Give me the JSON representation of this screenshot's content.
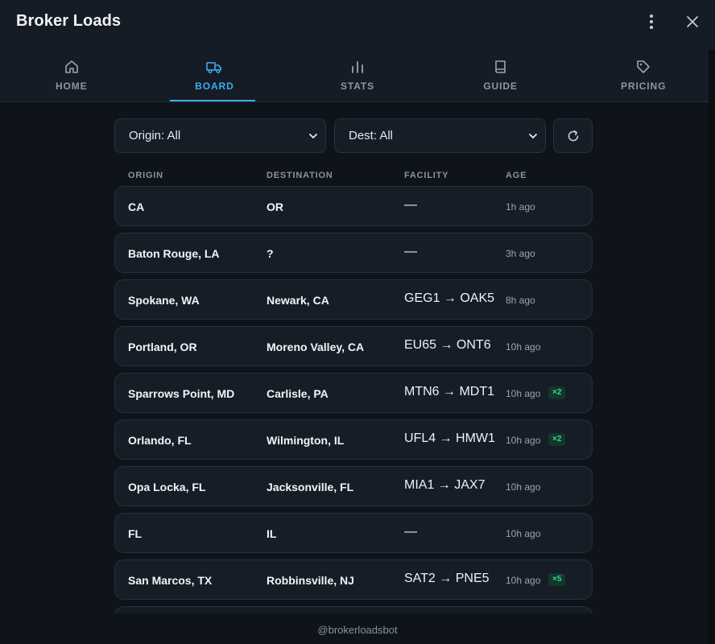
{
  "app": {
    "title": "Broker Loads"
  },
  "header": {
    "more_icon": "more-vertical-icon",
    "close_icon": "close-icon"
  },
  "tabs": [
    {
      "label": "HOME",
      "icon": "home-icon",
      "active": false
    },
    {
      "label": "BOARD",
      "icon": "truck-icon",
      "active": true
    },
    {
      "label": "STATS",
      "icon": "bar-chart-icon",
      "active": false
    },
    {
      "label": "GUIDE",
      "icon": "book-icon",
      "active": false
    },
    {
      "label": "PRICING",
      "icon": "tag-icon",
      "active": false
    }
  ],
  "filters": {
    "origin": "Origin: All",
    "dest": "Dest: All",
    "refresh_icon": "refresh-icon"
  },
  "columns": {
    "origin": "ORIGIN",
    "destination": "DESTINATION",
    "facility": "FACILITY",
    "age": "AGE"
  },
  "rows": [
    {
      "origin": "CA",
      "destination": "OR",
      "facility": "—",
      "age": "1h ago",
      "badge": ""
    },
    {
      "origin": "Baton Rouge, LA",
      "destination": "?",
      "facility": "—",
      "age": "3h ago",
      "badge": ""
    },
    {
      "origin": "Spokane, WA",
      "destination": "Newark, CA",
      "facility": "GEG1 → OAK5",
      "age": "8h ago",
      "badge": ""
    },
    {
      "origin": "Portland, OR",
      "destination": "Moreno Valley, CA",
      "facility": "EU65 → ONT6",
      "age": "10h ago",
      "badge": ""
    },
    {
      "origin": "Sparrows Point, MD",
      "destination": "Carlisle, PA",
      "facility": "MTN6 → MDT1",
      "age": "10h ago",
      "badge": "×2"
    },
    {
      "origin": "Orlando, FL",
      "destination": "Wilmington, IL",
      "facility": "UFL4 → HMW1",
      "age": "10h ago",
      "badge": "×2"
    },
    {
      "origin": "Opa Locka, FL",
      "destination": "Jacksonville, FL",
      "facility": "MIA1 → JAX7",
      "age": "10h ago",
      "badge": ""
    },
    {
      "origin": "FL",
      "destination": "IL",
      "facility": "—",
      "age": "10h ago",
      "badge": ""
    },
    {
      "origin": "San Marcos, TX",
      "destination": "Robbinsville, NJ",
      "facility": "SAT2 → PNE5",
      "age": "10h ago",
      "badge": "×5"
    },
    {
      "origin": "",
      "destination": "",
      "facility": "",
      "age": "",
      "badge": ""
    }
  ],
  "footer": {
    "handle": "@brokerloadsbot"
  },
  "colors": {
    "accent": "#38aef0",
    "badge_text": "#35d690",
    "badge_bg": "#12372c",
    "background": "#0f131a",
    "card": "#171d27"
  }
}
